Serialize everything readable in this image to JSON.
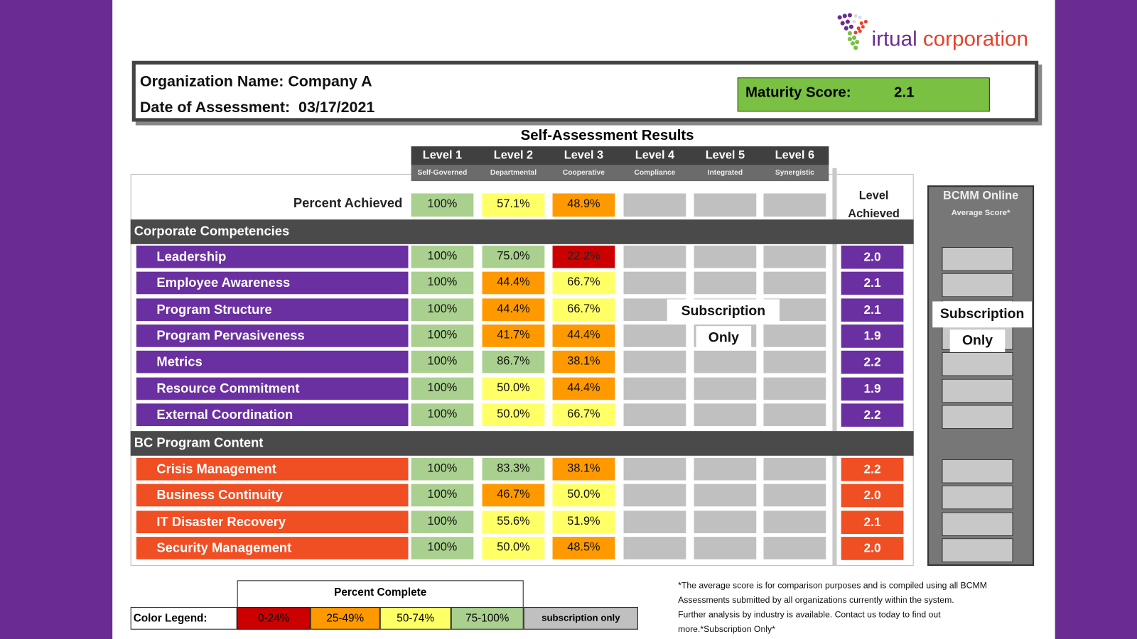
{
  "logo": {
    "text_part1": "irtual",
    "text_part2": "corporation"
  },
  "header": {
    "org_label": "Organization Name:",
    "org_value": "Company A",
    "date_label": "Date of Assessment:",
    "date_value": "03/17/2021",
    "maturity_label": "Maturity Score:",
    "maturity_value": "2.1"
  },
  "title": "Self-Assessment Results",
  "levels": [
    {
      "name": "Level 1",
      "sub": "Self-Governed"
    },
    {
      "name": "Level 2",
      "sub": "Departmental"
    },
    {
      "name": "Level 3",
      "sub": "Cooperative"
    },
    {
      "name": "Level 4",
      "sub": "Compliance"
    },
    {
      "name": "Level 5",
      "sub": "Integrated"
    },
    {
      "name": "Level 6",
      "sub": "Synergistic"
    }
  ],
  "percent_achieved": {
    "label": "Percent Achieved",
    "values": [
      "100%",
      "57.1%",
      "48.9%"
    ]
  },
  "level_achieved_label": "Level Achieved",
  "sections": [
    {
      "title": "Corporate Competencies",
      "color": "#6a2fa0",
      "rows": [
        {
          "label": "Leadership",
          "values": [
            "100%",
            "75.0%",
            "22.2%"
          ],
          "score": "2.0"
        },
        {
          "label": "Employee Awareness",
          "values": [
            "100%",
            "44.4%",
            "66.7%"
          ],
          "score": "2.1"
        },
        {
          "label": "Program Structure",
          "values": [
            "100%",
            "44.4%",
            "66.7%"
          ],
          "score": "2.1"
        },
        {
          "label": "Program Pervasiveness",
          "values": [
            "100%",
            "41.7%",
            "44.4%"
          ],
          "score": "1.9"
        },
        {
          "label": "Metrics",
          "values": [
            "100%",
            "86.7%",
            "38.1%"
          ],
          "score": "2.2"
        },
        {
          "label": "Resource Commitment",
          "values": [
            "100%",
            "50.0%",
            "44.4%"
          ],
          "score": "1.9"
        },
        {
          "label": "External Coordination",
          "values": [
            "100%",
            "50.0%",
            "66.7%"
          ],
          "score": "2.2"
        }
      ]
    },
    {
      "title": "BC Program Content",
      "color": "#f04e23",
      "rows": [
        {
          "label": "Crisis Management",
          "values": [
            "100%",
            "83.3%",
            "38.1%"
          ],
          "score": "2.2"
        },
        {
          "label": "Business Continuity",
          "values": [
            "100%",
            "46.7%",
            "50.0%"
          ],
          "score": "2.0"
        },
        {
          "label": "IT Disaster Recovery",
          "values": [
            "100%",
            "55.6%",
            "51.9%"
          ],
          "score": "2.1"
        },
        {
          "label": "Security Management",
          "values": [
            "100%",
            "50.0%",
            "48.5%"
          ],
          "score": "2.0"
        }
      ]
    }
  ],
  "subscription": {
    "line1": "Subscription",
    "line2": "Only"
  },
  "panel": {
    "title": "BCMM Online",
    "subtitle": "Average Score*"
  },
  "legend": {
    "header": "Percent Complete",
    "label": "Color Legend:",
    "items": [
      {
        "text": "0-24%",
        "color": "#cc0000"
      },
      {
        "text": "25-49%",
        "color": "#ff9900"
      },
      {
        "text": "50-74%",
        "color": "#ffff66"
      },
      {
        "text": "75-100%",
        "color": "#a9d08e"
      },
      {
        "text": "subscription only",
        "color": "#c0c0c0"
      }
    ]
  },
  "footnote": {
    "lines": [
      "*The average score is for comparison purposes and is compiled using all BCMM",
      "Assessments submitted by all organizations currently within the system.",
      "Further analysis by industry is available. Contact us today to find out",
      "more.*Subscription Only*"
    ]
  }
}
